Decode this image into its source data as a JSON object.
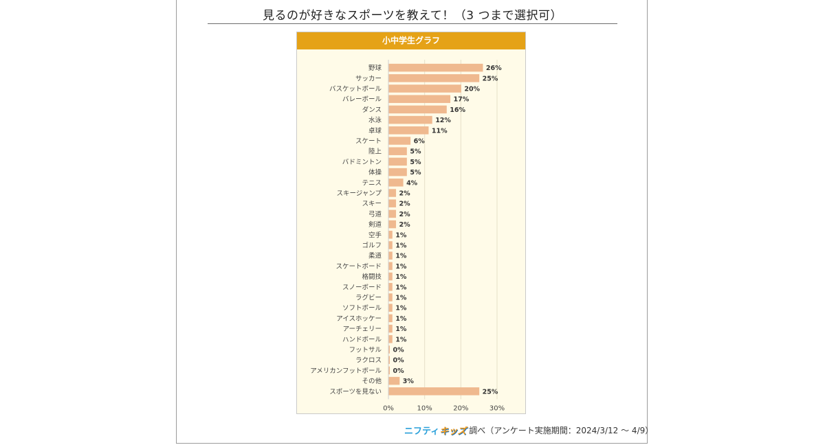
{
  "title": "見るのが好きなスポーツを教えて！（3 つまで選択可）",
  "panel_title": "小中学生グラフ",
  "footer": {
    "logo_part1": "ニフティ",
    "logo_part2": "キッズ",
    "text": "調べ（アンケート実施期間：2024/3/12 ～ 4/9）"
  },
  "colors": {
    "bar": "#efb98f",
    "header": "#e5a217",
    "panel_bg": "#fffbe8",
    "grid": "#e6e0c8"
  },
  "chart_data": {
    "type": "bar",
    "orientation": "horizontal",
    "title": "小中学生グラフ",
    "categories": [
      "野球",
      "サッカー",
      "バスケットボール",
      "バレーボール",
      "ダンス",
      "水泳",
      "卓球",
      "スケート",
      "陸上",
      "バドミントン",
      "体操",
      "テニス",
      "スキージャンプ",
      "スキー",
      "弓道",
      "剣道",
      "空手",
      "ゴルフ",
      "柔道",
      "スケートボード",
      "格闘技",
      "スノーボード",
      "ラグビー",
      "ソフトボール",
      "アイスホッケー",
      "アーチェリー",
      "ハンドボール",
      "フットサル",
      "ラクロス",
      "アメリカンフットボール",
      "その他",
      "スポーツを見ない"
    ],
    "values": [
      26,
      25,
      20,
      17,
      16,
      12,
      11,
      6,
      5,
      5,
      5,
      4,
      2,
      2,
      2,
      2,
      1,
      1,
      1,
      1,
      1,
      1,
      1,
      1,
      1,
      1,
      1,
      0,
      0,
      0,
      3,
      25
    ],
    "value_labels": [
      "26%",
      "25%",
      "20%",
      "17%",
      "16%",
      "12%",
      "11%",
      "6%",
      "5%",
      "5%",
      "5%",
      "4%",
      "2%",
      "2%",
      "2%",
      "2%",
      "1%",
      "1%",
      "1%",
      "1%",
      "1%",
      "1%",
      "1%",
      "1%",
      "1%",
      "1%",
      "1%",
      "0%",
      "0%",
      "0%",
      "3%",
      "25%"
    ],
    "xlim": [
      0,
      30
    ],
    "xticks": [
      "0%",
      "10%",
      "20%",
      "30%"
    ],
    "grid": true
  }
}
